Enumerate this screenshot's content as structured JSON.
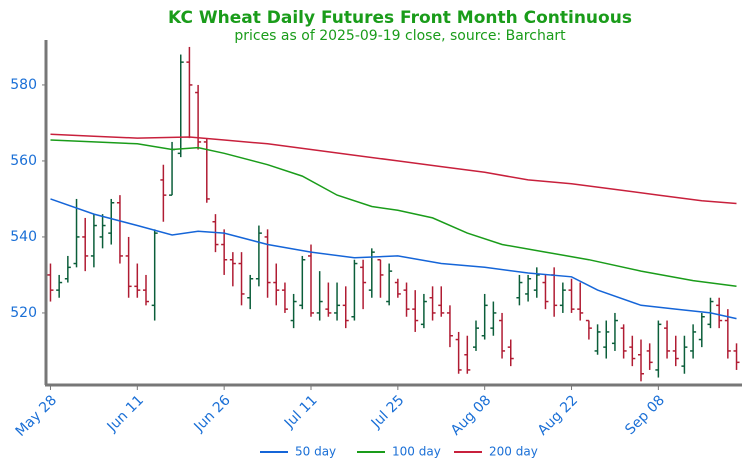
{
  "chart_data": {
    "type": "ohlc",
    "title": "KC Wheat Daily Futures Front Month Continuous",
    "subtitle": "prices as of 2025-09-19 close, source: Barchart",
    "xlim": [
      -0.4,
      79.4
    ],
    "ylim": [
      501.3,
      591.3
    ],
    "yticks": [
      520,
      540,
      560,
      580
    ],
    "xticks": [
      {
        "value": 0,
        "label": "May 28"
      },
      {
        "value": 10,
        "label": "Jun 11"
      },
      {
        "value": 20,
        "label": "Jun 26"
      },
      {
        "value": 30,
        "label": "Jul 11"
      },
      {
        "value": 40,
        "label": "Jul 25"
      },
      {
        "value": 50,
        "label": "Aug 08"
      },
      {
        "value": 60,
        "label": "Aug 22"
      },
      {
        "value": 70,
        "label": "Sep 08"
      }
    ],
    "up_color": "#0b5e3a",
    "down_color": "#b01c33",
    "x": [
      0,
      1,
      2,
      3,
      4,
      5,
      6,
      7,
      8,
      9,
      10,
      11,
      12,
      13,
      14,
      15,
      16,
      17,
      18,
      19,
      20,
      21,
      22,
      23,
      24,
      25,
      26,
      27,
      28,
      29,
      30,
      31,
      32,
      33,
      34,
      35,
      36,
      37,
      38,
      39,
      40,
      41,
      42,
      43,
      44,
      45,
      46,
      47,
      48,
      49,
      50,
      51,
      52,
      53,
      54,
      55,
      56,
      57,
      58,
      59,
      60,
      61,
      62,
      63,
      64,
      65,
      66,
      67,
      68,
      69,
      70,
      71,
      72,
      73,
      74,
      75,
      76,
      77,
      78,
      79
    ],
    "open": [
      530,
      526,
      529,
      533,
      540,
      535,
      540,
      541,
      549,
      535,
      527,
      526,
      522,
      555,
      551,
      562,
      586,
      578,
      565,
      544,
      538,
      534,
      533,
      524,
      529,
      540,
      528,
      526,
      518,
      522,
      535,
      520,
      521,
      520,
      522,
      519,
      532,
      526,
      534,
      523,
      528,
      526,
      521,
      517,
      524,
      522,
      520,
      513,
      509,
      511,
      514,
      516,
      518,
      511,
      524,
      525,
      526,
      528,
      530,
      522,
      526,
      521,
      518,
      510,
      511,
      512,
      516,
      511,
      509,
      510,
      505,
      516,
      510,
      506,
      510,
      513,
      517,
      522,
      518,
      510
    ],
    "high": [
      533,
      530,
      535,
      550,
      545,
      546,
      546,
      550,
      551,
      540,
      533,
      530,
      542,
      559,
      565,
      588,
      590,
      580,
      566,
      546,
      542,
      536,
      536,
      530,
      543,
      542,
      533,
      528,
      525,
      535,
      538,
      531,
      528,
      528,
      527,
      534,
      534,
      537,
      534,
      533,
      529,
      528,
      526,
      525,
      527,
      527,
      522,
      515,
      514,
      518,
      525,
      523,
      520,
      513,
      530,
      530,
      532,
      530,
      532,
      528,
      529,
      528,
      518,
      517,
      518,
      520,
      517,
      514,
      513,
      512,
      518,
      518,
      514,
      514,
      517,
      520,
      524,
      524,
      521,
      512
    ],
    "low": [
      523,
      524,
      528,
      532,
      531,
      532,
      537,
      538,
      533,
      524,
      524,
      522,
      518,
      544,
      551,
      561,
      566,
      563,
      549,
      536,
      530,
      527,
      522,
      521,
      527,
      524,
      522,
      520,
      516,
      521,
      519,
      518,
      519,
      518,
      516,
      518,
      521,
      524,
      524,
      522,
      524,
      519,
      515,
      516,
      518,
      519,
      511,
      504,
      504,
      510,
      513,
      514,
      508,
      506,
      522,
      523,
      524,
      521,
      519,
      520,
      520,
      518,
      513,
      509,
      508,
      510,
      508,
      506,
      502,
      505,
      503,
      508,
      506,
      504,
      508,
      511,
      516,
      516,
      508,
      505
    ],
    "close": [
      526,
      528,
      532,
      540,
      535,
      543,
      543,
      549,
      535,
      527,
      526,
      523,
      541,
      551,
      563,
      586,
      580,
      565,
      550,
      538,
      534,
      533,
      525,
      529,
      541,
      528,
      526,
      521,
      523,
      534,
      520,
      523,
      520,
      522,
      518,
      533,
      528,
      536,
      530,
      531,
      525,
      521,
      518,
      523,
      520,
      520,
      514,
      505,
      505,
      516,
      522,
      520,
      510,
      508,
      528,
      529,
      530,
      523,
      522,
      526,
      521,
      520,
      516,
      515,
      515,
      518,
      510,
      508,
      504,
      507,
      517,
      510,
      508,
      511,
      515,
      519,
      523,
      518,
      510,
      507
    ],
    "series": [
      {
        "name": "50 day",
        "color": "#1565d8",
        "x": [
          0,
          5,
          10,
          14,
          17,
          20,
          25,
          30,
          35,
          40,
          45,
          50,
          55,
          60,
          63,
          68,
          72,
          76,
          79
        ],
        "values": [
          550,
          546,
          543,
          540.5,
          541.5,
          541,
          538,
          536,
          534.5,
          535,
          533,
          532,
          530.5,
          529.5,
          526,
          522,
          521,
          520,
          518.5
        ]
      },
      {
        "name": "100 day",
        "color": "#1a9c1a",
        "x": [
          0,
          5,
          10,
          14,
          17,
          20,
          25,
          29,
          33,
          37,
          40,
          44,
          48,
          52,
          57,
          62,
          68,
          74,
          79
        ],
        "values": [
          565.5,
          565,
          564.5,
          563,
          563.5,
          562,
          559,
          556,
          551,
          548,
          547,
          545,
          541,
          538,
          536,
          534,
          531,
          528.5,
          527
        ]
      },
      {
        "name": "200 day",
        "color": "#c8203c",
        "x": [
          0,
          5,
          10,
          16,
          20,
          25,
          30,
          35,
          40,
          45,
          50,
          55,
          60,
          65,
          70,
          75,
          79
        ],
        "values": [
          567,
          566.5,
          566,
          566.3,
          565.5,
          564.5,
          563,
          561.5,
          560,
          558.5,
          557,
          555,
          554,
          552.5,
          551,
          549.5,
          548.8
        ]
      }
    ]
  }
}
